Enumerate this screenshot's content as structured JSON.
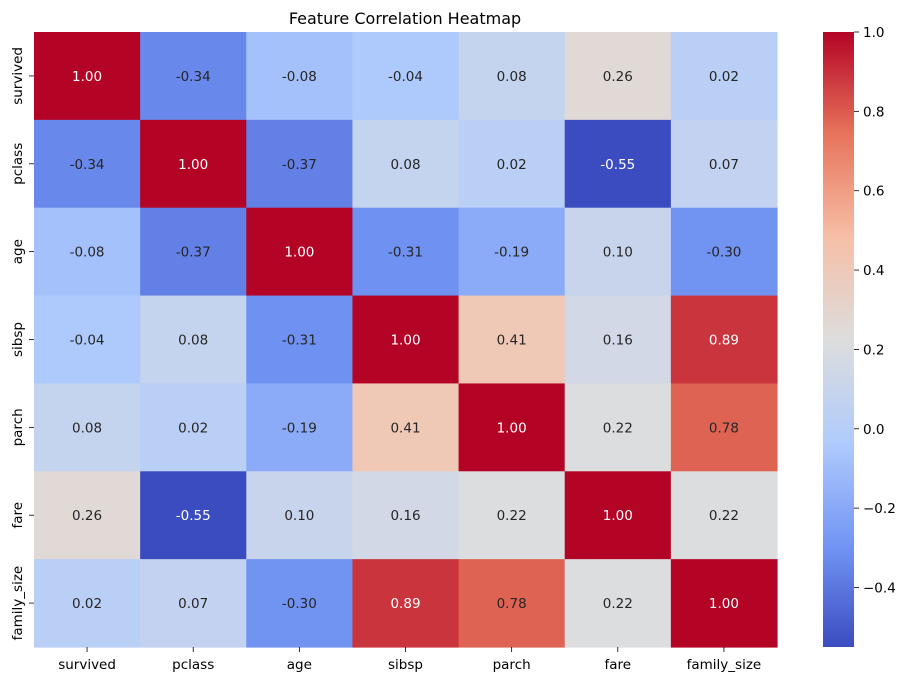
{
  "chart_data": {
    "type": "heatmap",
    "title": "Feature Correlation Heatmap",
    "xlabel": "",
    "ylabel": "",
    "x_categories": [
      "survived",
      "pclass",
      "age",
      "sibsp",
      "parch",
      "fare",
      "family_size"
    ],
    "y_categories": [
      "survived",
      "pclass",
      "age",
      "sibsp",
      "parch",
      "fare",
      "family_size"
    ],
    "values": [
      [
        1.0,
        -0.34,
        -0.08,
        -0.04,
        0.08,
        0.26,
        0.02
      ],
      [
        -0.34,
        1.0,
        -0.37,
        0.08,
        0.02,
        -0.55,
        0.07
      ],
      [
        -0.08,
        -0.37,
        1.0,
        -0.31,
        -0.19,
        0.1,
        -0.3
      ],
      [
        -0.04,
        0.08,
        -0.31,
        1.0,
        0.41,
        0.16,
        0.89
      ],
      [
        0.08,
        0.02,
        -0.19,
        0.41,
        1.0,
        0.22,
        0.78
      ],
      [
        0.26,
        -0.55,
        0.1,
        0.16,
        0.22,
        1.0,
        0.22
      ],
      [
        0.02,
        0.07,
        -0.3,
        0.89,
        0.78,
        0.22,
        1.0
      ]
    ],
    "annotation_format": "2 decimals",
    "colormap": "coolwarm",
    "colormap_stops": [
      "#3b4cc0",
      "#7396f5",
      "#b0cbfc",
      "#dddddd",
      "#f6bfa6",
      "#e7745b",
      "#b40426"
    ],
    "value_range": [
      -0.55,
      1.0
    ],
    "colorbar": {
      "ticks": [
        -0.4,
        -0.2,
        0.0,
        0.2,
        0.4,
        0.6,
        0.8,
        1.0
      ],
      "tick_labels": [
        "−0.4",
        "−0.2",
        "0.0",
        "0.2",
        "0.4",
        "0.6",
        "0.8",
        "1.0"
      ]
    },
    "grid": false,
    "legend": "colorbar on the right"
  }
}
